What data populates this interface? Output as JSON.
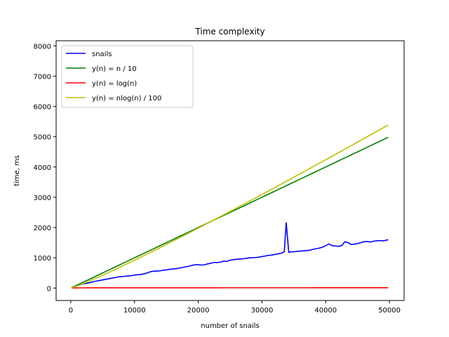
{
  "chart_data": {
    "type": "line",
    "title": "Time complexity",
    "xlabel": "number of snails",
    "ylabel": "time, ms",
    "xlim": [
      -2300,
      52300
    ],
    "ylim": [
      -410,
      8170
    ],
    "xticks": [
      0,
      10000,
      20000,
      30000,
      40000,
      50000
    ],
    "xtick_labels": [
      "0",
      "10000",
      "20000",
      "30000",
      "40000",
      "50000"
    ],
    "yticks": [
      0,
      1000,
      2000,
      3000,
      4000,
      5000,
      6000,
      7000,
      8000
    ],
    "ytick_labels": [
      "0",
      "1000",
      "2000",
      "3000",
      "4000",
      "5000",
      "6000",
      "7000",
      "8000"
    ],
    "grid": false,
    "legend_position": "upper-left",
    "series": [
      {
        "name": "snails",
        "color": "#0000ff",
        "x": [
          500,
          1000,
          1500,
          2000,
          2500,
          3000,
          3500,
          4000,
          4500,
          5000,
          5500,
          6000,
          6500,
          7000,
          7500,
          8000,
          8500,
          9000,
          9500,
          10000,
          10500,
          11000,
          11500,
          12000,
          12500,
          13000,
          13500,
          14000,
          14500,
          15000,
          15500,
          16000,
          16500,
          17000,
          17500,
          18000,
          18500,
          19000,
          19500,
          20000,
          20500,
          21000,
          21500,
          22000,
          22500,
          23000,
          23500,
          24000,
          24500,
          25000,
          25500,
          26000,
          26500,
          27000,
          27500,
          28000,
          28500,
          29000,
          29500,
          30000,
          30500,
          31000,
          31500,
          32000,
          32500,
          33000,
          33500,
          33800,
          34200,
          34500,
          35000,
          35500,
          36000,
          36500,
          37000,
          37500,
          38000,
          38500,
          39000,
          39500,
          40000,
          40500,
          41000,
          41500,
          42000,
          42500,
          43000,
          43500,
          44000,
          44500,
          45000,
          45500,
          46000,
          46500,
          47000,
          47500,
          48000,
          48500,
          49000,
          49500,
          49800
        ],
        "y": [
          50,
          80,
          110,
          140,
          160,
          180,
          210,
          230,
          250,
          270,
          290,
          310,
          330,
          350,
          370,
          380,
          390,
          400,
          410,
          430,
          440,
          450,
          470,
          500,
          540,
          560,
          560,
          570,
          590,
          600,
          620,
          630,
          640,
          660,
          680,
          700,
          720,
          750,
          770,
          770,
          760,
          770,
          800,
          820,
          850,
          840,
          860,
          890,
          880,
          920,
          940,
          950,
          960,
          970,
          980,
          1000,
          1000,
          1010,
          1020,
          1040,
          1060,
          1080,
          1090,
          1110,
          1130,
          1150,
          1200,
          2170,
          1180,
          1200,
          1200,
          1210,
          1220,
          1230,
          1240,
          1250,
          1280,
          1300,
          1320,
          1350,
          1400,
          1460,
          1400,
          1390,
          1380,
          1400,
          1530,
          1500,
          1440,
          1450,
          1470,
          1500,
          1530,
          1540,
          1520,
          1550,
          1560,
          1570,
          1560,
          1580,
          1600
        ]
      },
      {
        "name": "y(n) = n / 10",
        "color": "#008000",
        "formula": "n/10",
        "x_range": [
          100,
          49800
        ]
      },
      {
        "name": "y(n) = log(n)",
        "color": "#ff0000",
        "formula": "ln(n)",
        "x_range": [
          100,
          49800
        ]
      },
      {
        "name": "y(n) = nlog(n) / 100",
        "color": "#bfbf00",
        "formula": "n*ln(n)/100",
        "x_range": [
          100,
          49800
        ]
      }
    ]
  }
}
